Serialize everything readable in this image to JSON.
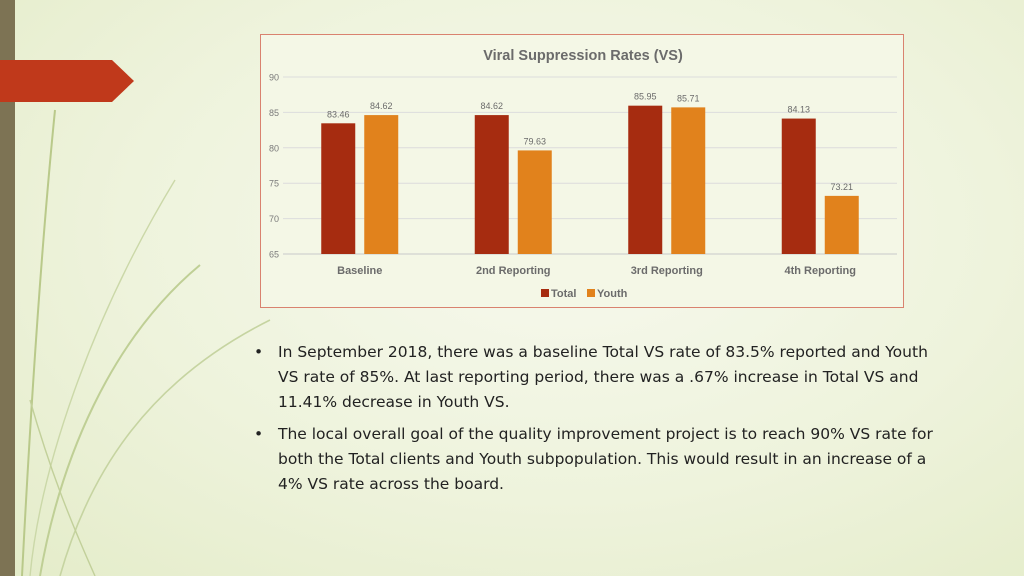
{
  "colors": {
    "total": "#a62c10",
    "youth": "#e1821c",
    "accent": "#c0391b",
    "frame": "#d9826f"
  },
  "chart_data": {
    "type": "bar",
    "title": "Viral Suppression Rates (VS)",
    "categories": [
      "Baseline",
      "2nd Reporting",
      "3rd Reporting",
      "4th Reporting"
    ],
    "series": [
      {
        "name": "Total",
        "values": [
          83.46,
          84.62,
          85.95,
          84.13
        ]
      },
      {
        "name": "Youth",
        "values": [
          84.62,
          79.63,
          85.71,
          73.21
        ]
      }
    ],
    "data_labels": {
      "Total": [
        "83.46",
        "84.62",
        "85.95",
        "84.13"
      ],
      "Youth": [
        "84.62",
        "79.63",
        "85.71",
        "73.21"
      ]
    },
    "ylim": [
      65,
      90
    ],
    "yticks": [
      65,
      70,
      75,
      80,
      85,
      90
    ],
    "grid": true,
    "legend": "bottom-center"
  },
  "bullets": [
    {
      "marker": "•",
      "text": "In September 2018, there was a baseline Total VS rate of 83.5% reported and Youth VS rate of 85%. At last reporting period, there was a .67% increase in Total VS and 11.41% decrease in Youth VS."
    },
    {
      "marker": "•",
      "text": "The local overall goal of the quality improvement project is to reach 90% VS rate for both the Total clients and Youth subpopulation. This would result in an increase of a 4% VS rate across the board."
    }
  ]
}
